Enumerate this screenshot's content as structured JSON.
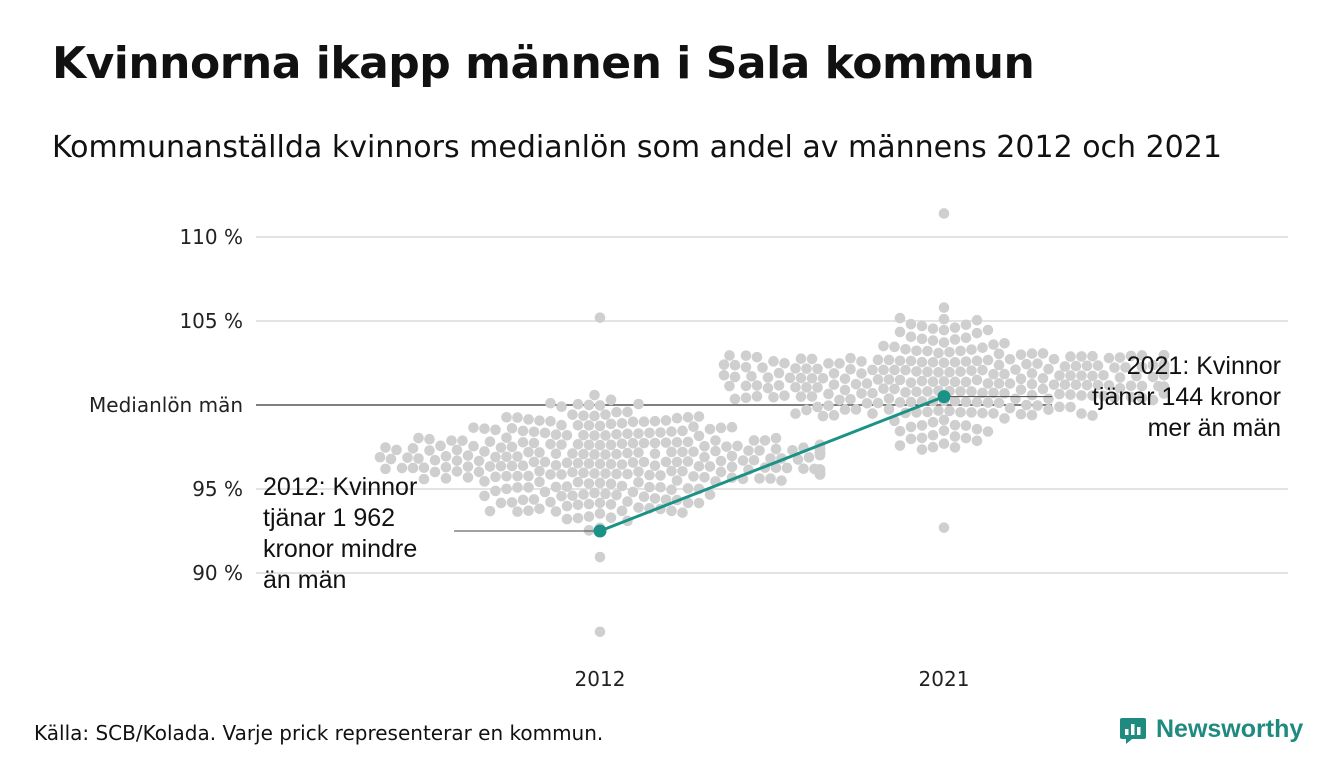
{
  "chart_data": {
    "type": "scatter",
    "subtype": "beeswarm",
    "title": "Kvinnorna ikapp männen i Sala kommun",
    "subtitle": "Kommunanställda kvinnors medianlön som andel av männens 2012 och 2021",
    "categories": [
      "2012",
      "2021"
    ],
    "y_ticks": [
      {
        "value": 90,
        "label": "90 %"
      },
      {
        "value": 95,
        "label": "95 %"
      },
      {
        "value": 100,
        "label": "Medianlön män"
      },
      {
        "value": 105,
        "label": "105 %"
      },
      {
        "value": 110,
        "label": "110 %"
      }
    ],
    "ylim": [
      85.5,
      111.5
    ],
    "grid": true,
    "reference_line": {
      "value": 100,
      "label": "Medianlön män"
    },
    "series": [
      {
        "name": "Sala kommun",
        "color": "#1a9286",
        "points": [
          {
            "x": "2012",
            "y": 92.5
          },
          {
            "x": "2021",
            "y": 100.5
          }
        ]
      }
    ],
    "background_distribution": {
      "color": "#cfcfcf",
      "2012": {
        "min": 86.5,
        "max": 105.2,
        "median": 96.5,
        "count": 290
      },
      "2021": {
        "min": 92.7,
        "max": 111.4,
        "median": 101.4,
        "count": 290
      }
    },
    "annotations": [
      {
        "target": "2012",
        "lines": [
          "2012: Kvinnor",
          "tjänar 1 962",
          "kronor mindre",
          "än män"
        ]
      },
      {
        "target": "2021",
        "lines": [
          "2021: Kvinnor",
          "tjänar 144 kronor",
          "mer än män"
        ]
      }
    ]
  },
  "footer": {
    "source": "Källa: SCB/Kolada. Varje prick representerar en kommun.",
    "brand": "Newsworthy",
    "brand_color": "#1f8a80",
    "logo_icon": "newsworthy-chart-icon"
  }
}
